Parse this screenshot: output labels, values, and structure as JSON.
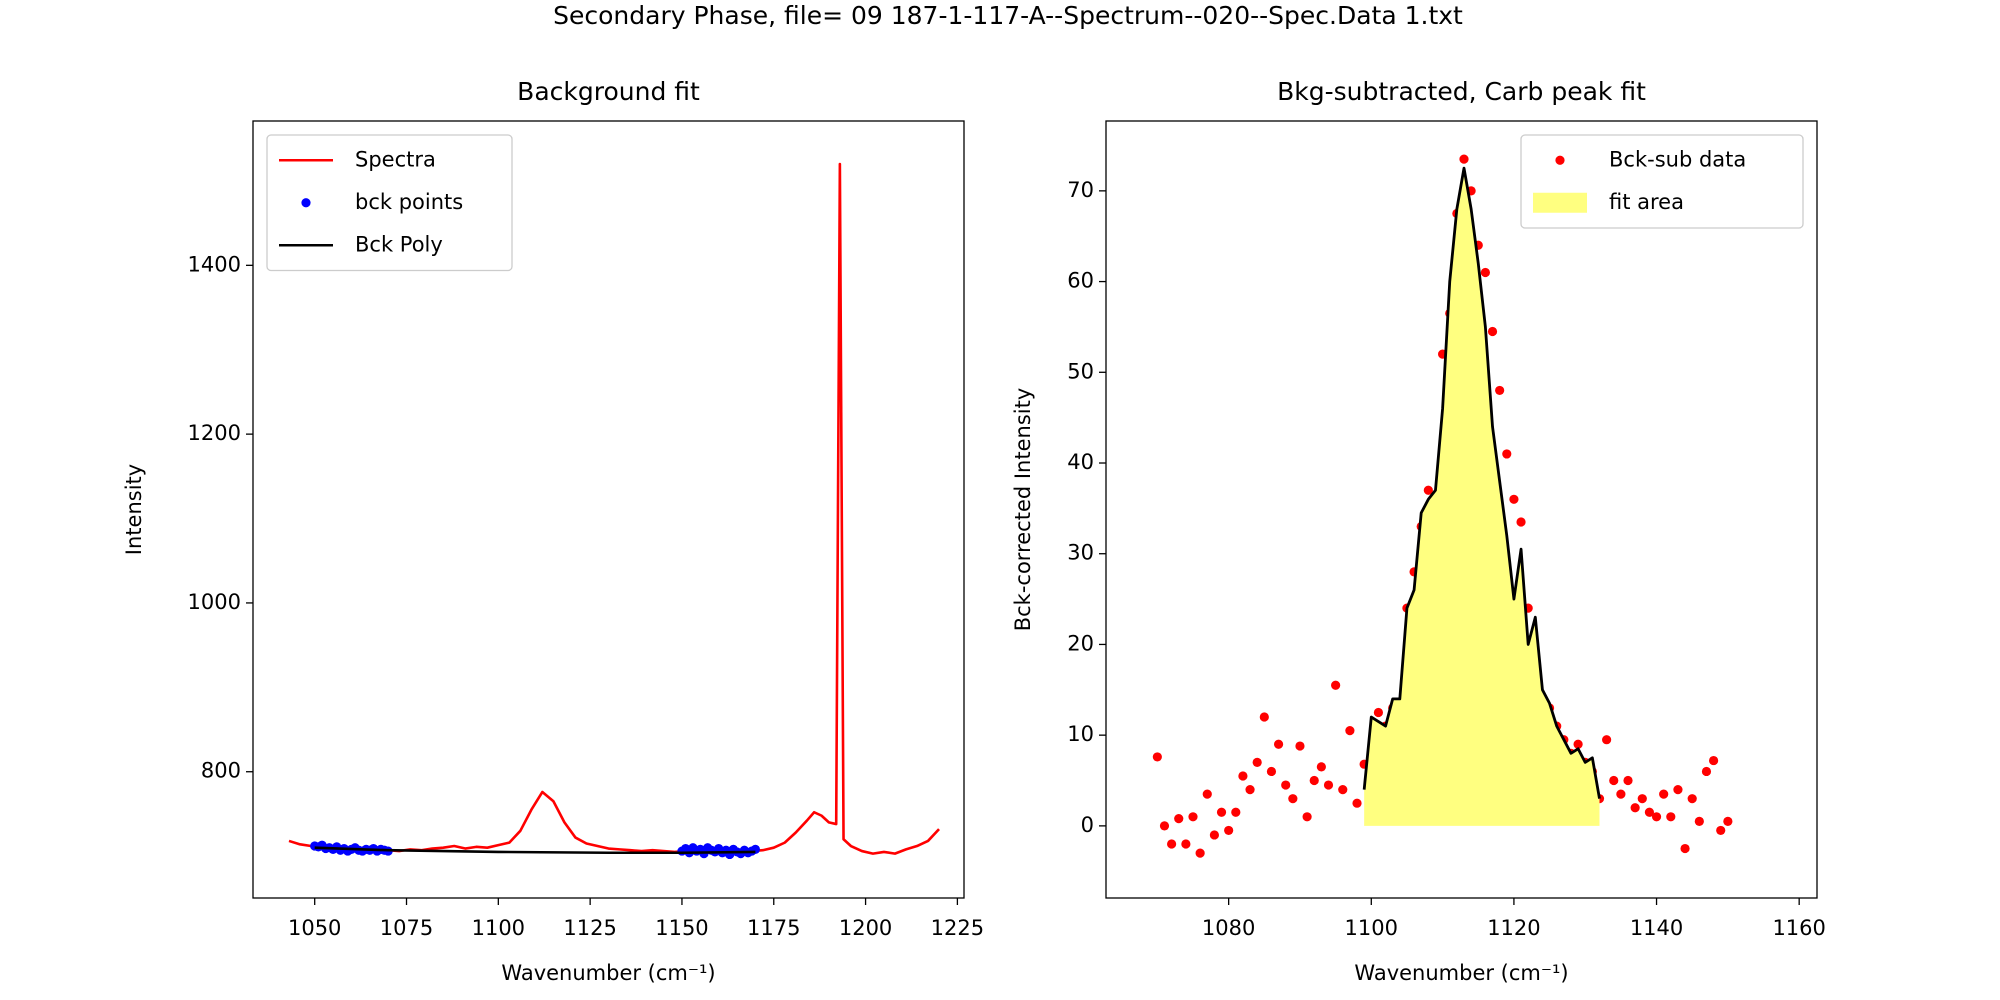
{
  "title": "Secondary Phase, file= 09 187-1-117-A--Spectrum--020--Spec.Data 1.txt",
  "chart_data": [
    {
      "type": "line",
      "title": "Background fit",
      "xlabel": "Wavenumber (cm⁻¹)",
      "ylabel": "Intensity",
      "xlim": [
        1033.2,
        1226.8
      ],
      "ylim": [
        650.4,
        1571
      ],
      "xticks": [
        1050,
        1075,
        1100,
        1125,
        1150,
        1175,
        1200,
        1225
      ],
      "yticks": [
        800,
        1000,
        1200,
        1400
      ],
      "grid": false,
      "legend": "upper left",
      "series": [
        {
          "name": "Spectra",
          "type": "line",
          "color": "#ff0000",
          "x": [
            1043,
            1046,
            1049,
            1052,
            1055,
            1058,
            1061,
            1064,
            1067,
            1070,
            1073,
            1076,
            1079,
            1082,
            1085,
            1088,
            1091,
            1094,
            1097,
            1100,
            1103,
            1106,
            1109,
            1112,
            1115,
            1118,
            1121,
            1124,
            1127,
            1130,
            1133,
            1136,
            1139,
            1142,
            1145,
            1148,
            1151,
            1154,
            1157,
            1160,
            1163,
            1166,
            1169,
            1172,
            1175,
            1178,
            1181,
            1184,
            1186,
            1188,
            1190,
            1192,
            1193,
            1194,
            1196,
            1199,
            1202,
            1205,
            1208,
            1211,
            1214,
            1217,
            1220
          ],
          "values": [
            718,
            714,
            712,
            710,
            709,
            708,
            707,
            707,
            708,
            707,
            706,
            708,
            707,
            709,
            710,
            712,
            709,
            711,
            710,
            713,
            716,
            730,
            755,
            776,
            765,
            740,
            722,
            715,
            712,
            709,
            708,
            707,
            706,
            707,
            706,
            705,
            706,
            708,
            707,
            706,
            706,
            705,
            706,
            707,
            710,
            716,
            728,
            742,
            752,
            748,
            740,
            738,
            1520,
            720,
            712,
            706,
            703,
            705,
            703,
            708,
            712,
            718,
            732
          ]
        },
        {
          "name": "bck points",
          "type": "scatter",
          "color": "#0000ff",
          "x": [
            1050,
            1051,
            1052,
            1053,
            1054,
            1055,
            1056,
            1057,
            1058,
            1059,
            1060,
            1061,
            1062,
            1063,
            1064,
            1065,
            1066,
            1067,
            1068,
            1069,
            1070,
            1150,
            1151,
            1152,
            1153,
            1154,
            1155,
            1156,
            1157,
            1158,
            1159,
            1160,
            1161,
            1162,
            1163,
            1164,
            1165,
            1166,
            1167,
            1168,
            1169,
            1170
          ],
          "values": [
            712,
            711,
            713,
            709,
            710,
            708,
            711,
            707,
            709,
            706,
            708,
            710,
            707,
            706,
            708,
            707,
            709,
            706,
            708,
            707,
            706,
            706,
            709,
            704,
            710,
            706,
            708,
            703,
            710,
            707,
            705,
            709,
            704,
            707,
            702,
            708,
            705,
            703,
            707,
            704,
            706,
            708
          ]
        },
        {
          "name": "Bck Poly",
          "type": "line",
          "color": "#000000",
          "x": [
            1050,
            1070,
            1100,
            1130,
            1150,
            1170
          ],
          "values": [
            710,
            707,
            705,
            704,
            704,
            705
          ]
        }
      ]
    },
    {
      "type": "scatter",
      "title": "Bkg-subtracted, Carb peak fit",
      "xlabel": "Wavenumber (cm⁻¹)",
      "ylabel": "Bck-corrected Intensity",
      "xlim": [
        1062.8,
        1162.5
      ],
      "ylim": [
        -7.95,
        77.7
      ],
      "xticks": [
        1080,
        1100,
        1120,
        1140,
        1160
      ],
      "yticks": [
        0,
        10,
        20,
        30,
        40,
        50,
        60,
        70
      ],
      "grid": false,
      "legend": "upper right",
      "series": [
        {
          "name": "Bck-sub data",
          "type": "scatter",
          "color": "#ff0000",
          "x": [
            1070,
            1071,
            1072,
            1073,
            1074,
            1075,
            1076,
            1077,
            1078,
            1079,
            1080,
            1081,
            1082,
            1083,
            1084,
            1085,
            1086,
            1087,
            1088,
            1089,
            1090,
            1091,
            1092,
            1093,
            1094,
            1095,
            1096,
            1097,
            1098,
            1099,
            1100,
            1101,
            1102,
            1103,
            1104,
            1105,
            1106,
            1107,
            1108,
            1109,
            1110,
            1111,
            1112,
            1113,
            1114,
            1115,
            1116,
            1117,
            1118,
            1119,
            1120,
            1121,
            1122,
            1123,
            1124,
            1125,
            1126,
            1127,
            1128,
            1129,
            1130,
            1131,
            1132,
            1133,
            1134,
            1135,
            1136,
            1137,
            1138,
            1139,
            1140,
            1141,
            1142,
            1143,
            1144,
            1145,
            1146,
            1147,
            1148,
            1149,
            1150
          ],
          "values": [
            7.6,
            0,
            -2,
            0.8,
            -2,
            1,
            -3,
            3.5,
            -1,
            1.5,
            -0.5,
            1.5,
            5.5,
            4,
            7,
            12,
            6,
            9,
            4.5,
            3,
            8.8,
            1,
            5,
            6.5,
            4.5,
            15.5,
            4,
            10.5,
            2.5,
            6.8,
            5,
            12.5,
            11,
            13,
            12,
            24,
            28,
            33,
            37,
            35,
            52,
            56.5,
            67.5,
            73.5,
            70,
            64,
            61,
            54.5,
            48,
            41,
            36,
            33.5,
            24,
            17,
            14,
            13,
            11,
            9.5,
            8,
            9,
            7,
            6,
            3,
            9.5,
            5,
            3.5,
            5,
            2,
            3,
            1.5,
            1,
            3.5,
            1,
            4,
            -2.5,
            3,
            0.5,
            6,
            7.2,
            -0.5,
            0.5
          ]
        },
        {
          "name": "fit area",
          "type": "area",
          "color": "#ffff80",
          "line_color": "#000000",
          "x": [
            1099,
            1100,
            1101,
            1102,
            1103,
            1104,
            1105,
            1106,
            1107,
            1108,
            1109,
            1110,
            1111,
            1112,
            1113,
            1114,
            1115,
            1116,
            1117,
            1118,
            1119,
            1120,
            1121,
            1122,
            1123,
            1124,
            1125,
            1126,
            1127,
            1128,
            1129,
            1130,
            1131,
            1132
          ],
          "values": [
            4,
            12,
            11.5,
            11,
            14,
            14,
            24,
            26,
            34.5,
            36,
            37,
            46,
            60,
            68,
            72.5,
            68,
            62,
            55,
            44,
            38,
            32,
            25,
            30.5,
            20,
            23,
            15,
            13.5,
            11,
            9.5,
            8,
            8.5,
            7,
            7.5,
            3
          ]
        }
      ]
    }
  ]
}
